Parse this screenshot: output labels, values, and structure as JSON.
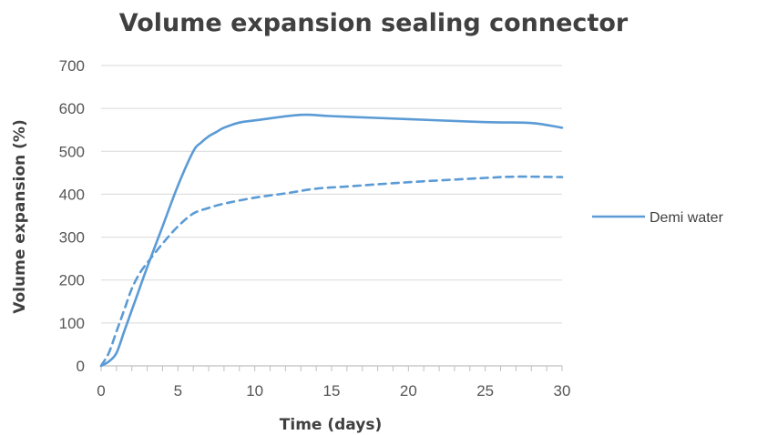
{
  "chart_data": {
    "type": "line",
    "title": "Volume expansion sealing connector",
    "xlabel": "Time (days)",
    "ylabel": "Volume expansion (%)",
    "xlim": [
      0,
      30
    ],
    "ylim": [
      0,
      700
    ],
    "x_ticks": [
      0,
      5,
      10,
      15,
      20,
      25,
      30
    ],
    "y_ticks": [
      0,
      100,
      200,
      300,
      400,
      500,
      600,
      700
    ],
    "grid": "horizontal",
    "legend_position": "right",
    "series": [
      {
        "name": "Demi water",
        "style": "solid",
        "color": "#5b9bd5",
        "x": [
          0,
          0.5,
          1,
          1.5,
          2,
          2.5,
          3,
          4,
          5,
          6,
          6.5,
          7,
          7.5,
          8,
          9,
          10,
          13,
          15,
          20,
          25,
          28,
          30
        ],
        "y": [
          0,
          10,
          30,
          80,
          130,
          180,
          230,
          325,
          420,
          500,
          520,
          535,
          545,
          555,
          567,
          572,
          585,
          582,
          575,
          568,
          566,
          555
        ]
      },
      {
        "style": "dashed",
        "color": "#5b9bd5",
        "x": [
          0,
          0.5,
          1,
          1.5,
          2,
          2.5,
          3,
          4,
          5,
          6,
          7,
          8,
          10,
          12,
          14,
          16,
          20,
          25,
          27,
          30
        ],
        "y": [
          0,
          30,
          80,
          130,
          180,
          215,
          240,
          285,
          325,
          355,
          368,
          378,
          392,
          402,
          413,
          418,
          428,
          438,
          441,
          440
        ]
      }
    ]
  }
}
